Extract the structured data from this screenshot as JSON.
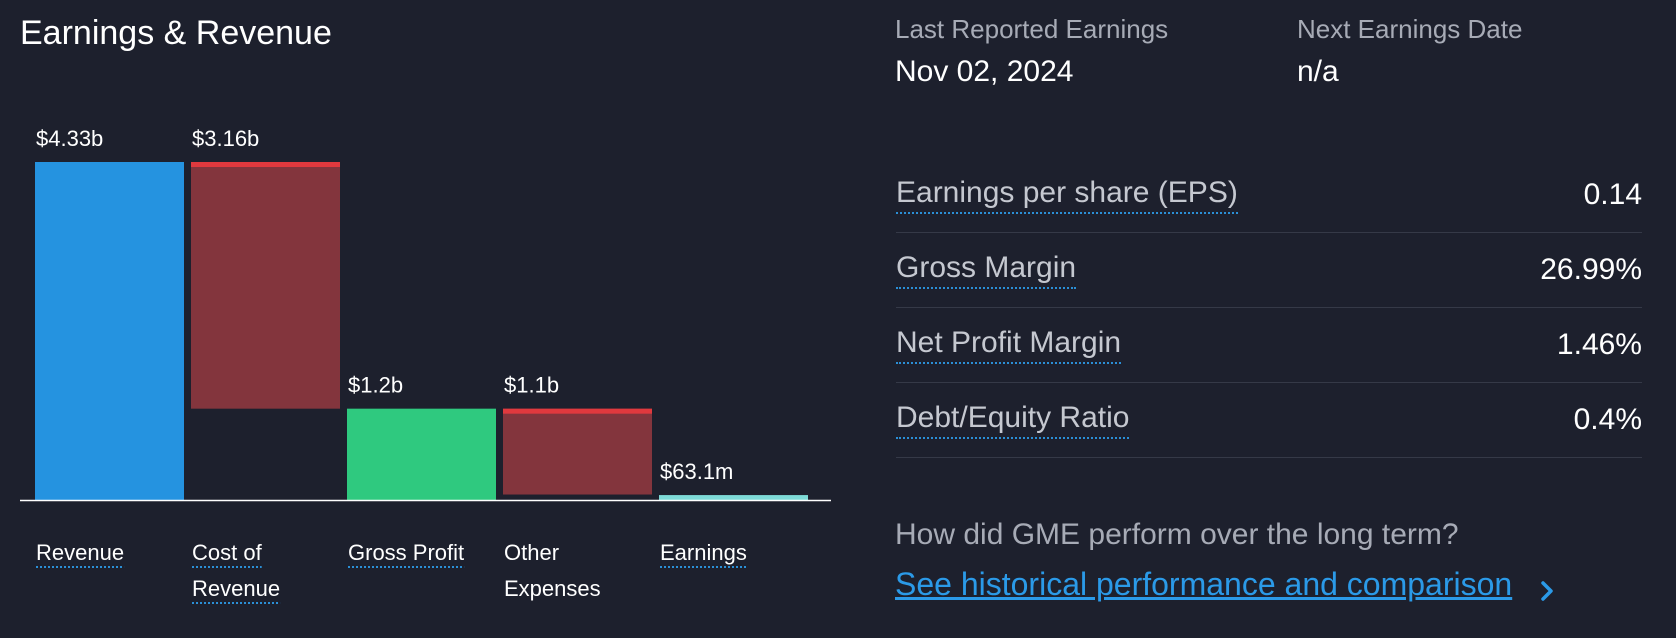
{
  "title": "Earnings & Revenue",
  "chart_data": {
    "type": "bar",
    "subtype": "waterfall",
    "categories": [
      "Revenue",
      "Cost of Revenue",
      "Gross Profit",
      "Other Expenses",
      "Earnings"
    ],
    "category_lines": [
      [
        "Revenue"
      ],
      [
        "Cost of",
        "Revenue"
      ],
      [
        "Gross Profit"
      ],
      [
        "Other",
        "Expenses"
      ],
      [
        "Earnings"
      ]
    ],
    "values": [
      4.33,
      3.16,
      1.17,
      1.1,
      0.0631
    ],
    "value_labels": [
      "$4.33b",
      "$3.16b",
      "$1.2b",
      "$1.1b",
      "$63.1m"
    ],
    "unit": "USD billions",
    "bar_kind": [
      "total",
      "decrease",
      "total",
      "decrease",
      "total"
    ],
    "category_underlined": [
      true,
      true,
      true,
      false,
      true
    ],
    "colors": {
      "total_revenue": "#2593e0",
      "decrease": "#83353d",
      "decrease_top": "#e0393e",
      "gross_profit": "#2fc97f",
      "earnings": "#7ddad7",
      "baseline": "#ffffff",
      "underline": "#2b8fd6"
    }
  },
  "earnings_info": {
    "last_reported_label": "Last Reported Earnings",
    "last_reported_value": "Nov 02, 2024",
    "next_date_label": "Next Earnings Date",
    "next_date_value": "n/a"
  },
  "metrics": [
    {
      "label": "Earnings per share (EPS)",
      "value": "0.14"
    },
    {
      "label": "Gross Margin",
      "value": "26.99%"
    },
    {
      "label": "Net Profit Margin",
      "value": "1.46%"
    },
    {
      "label": "Debt/Equity Ratio",
      "value": "0.4%"
    }
  ],
  "long_term": {
    "question": "How did GME perform over the long term?",
    "link_text": "See historical performance and comparison",
    "chevron_icon": "chevron-right-icon"
  }
}
